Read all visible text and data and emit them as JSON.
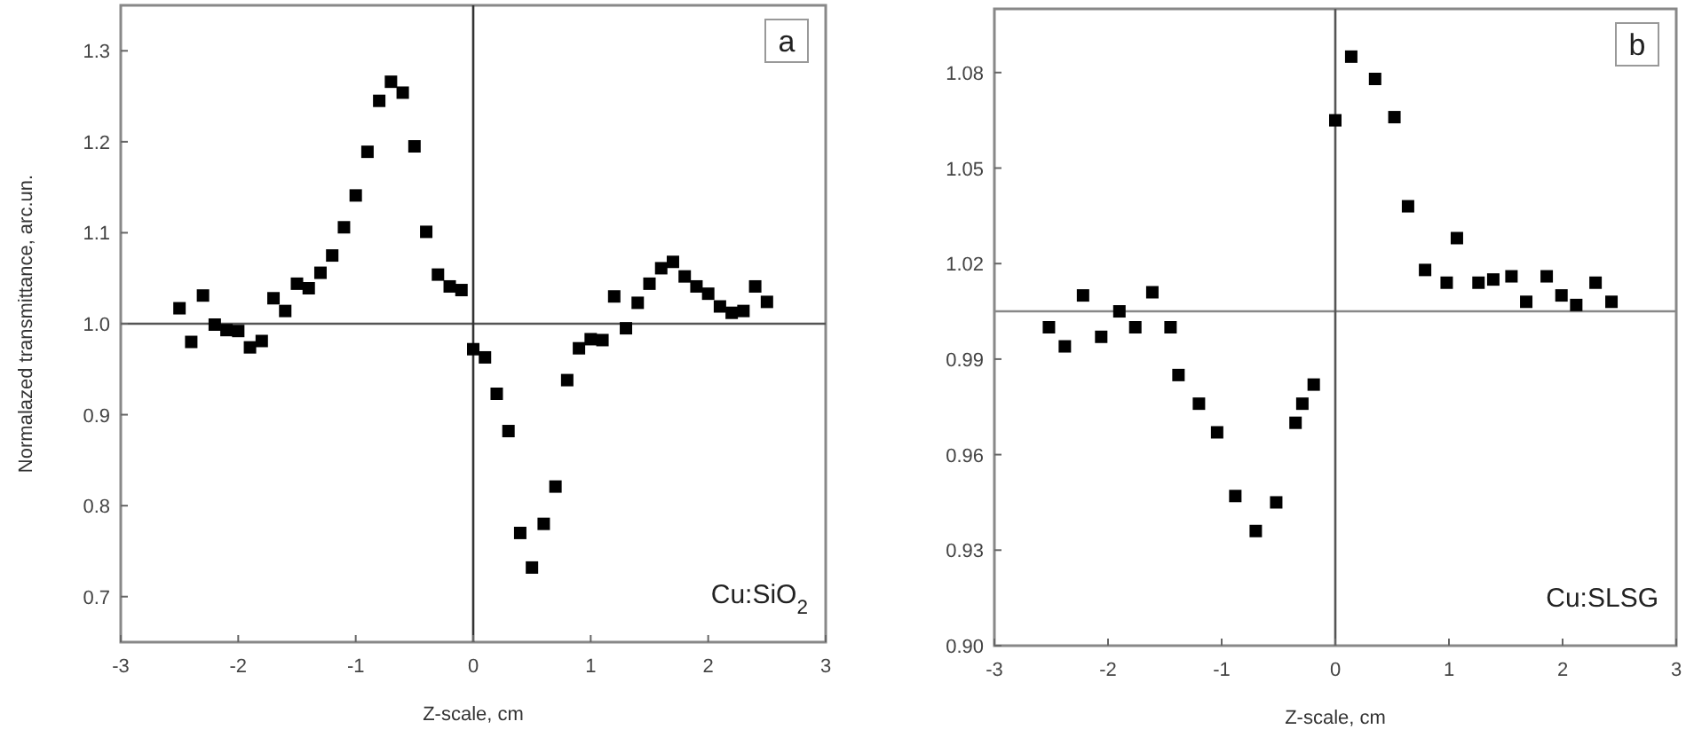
{
  "chart_data": [
    {
      "type": "scatter",
      "xlabel": "Z-scale, cm",
      "ylabel": "Normalazed transmittance, arc.un.",
      "annotations": [
        "a",
        "Cu:SiO$_{2}$"
      ],
      "x": [
        -2.5,
        -2.4,
        -2.3,
        -2.2,
        -2.1,
        -2.0,
        -1.9,
        -1.8,
        -1.7,
        -1.6,
        -1.5,
        -1.4,
        -1.3,
        -1.2,
        -1.1,
        -1.0,
        -0.9,
        -0.8,
        -0.7,
        -0.6,
        -0.5,
        -0.4,
        -0.3,
        -0.2,
        -0.1,
        0.0,
        0.1,
        0.2,
        0.3,
        0.4,
        0.5,
        0.6,
        0.7,
        0.8,
        0.9,
        1.0,
        1.1,
        1.2,
        1.3,
        1.4,
        1.5,
        1.6,
        1.7,
        1.8,
        1.9,
        2.0,
        2.1,
        2.2,
        2.3,
        2.4,
        2.5
      ],
      "series": [
        {
          "color": "#000000",
          "values": [
            1.017,
            0.98,
            1.031,
            0.999,
            0.993,
            0.992,
            0.974,
            0.981,
            1.028,
            1.014,
            1.044,
            1.039,
            1.056,
            1.075,
            1.106,
            1.141,
            1.189,
            1.245,
            1.266,
            1.254,
            1.195,
            1.101,
            1.054,
            1.041,
            1.037,
            0.972,
            0.963,
            0.923,
            0.882,
            0.77,
            0.732,
            0.78,
            0.821,
            0.938,
            0.973,
            0.983,
            0.982,
            1.03,
            0.995,
            1.023,
            1.044,
            1.061,
            1.068,
            1.052,
            1.041,
            1.033,
            1.019,
            1.012,
            1.014,
            1.041,
            1.024
          ]
        }
      ],
      "marker": "square",
      "xlim": [
        -3,
        3
      ],
      "xticks": [
        -3,
        -2,
        -1,
        0,
        1,
        2,
        3
      ],
      "ylim": [
        0.65,
        1.35
      ],
      "yticks": [
        {
          "value": 0.7,
          "label": "0.7"
        },
        {
          "value": 0.8,
          "label": "0.8"
        },
        {
          "value": 0.9,
          "label": "0.9"
        },
        {
          "value": 1,
          "label": "1.0"
        },
        {
          "value": 1.1,
          "label": "1.1"
        },
        {
          "value": 1.2,
          "label": "1.2"
        },
        {
          "value": 1.3,
          "label": "1.3"
        }
      ],
      "ref_lines": [
        {
          "axis": "y",
          "value": 1,
          "color": "#555555"
        },
        {
          "axis": "x",
          "value": 0,
          "color": "#333333"
        }
      ]
    },
    {
      "type": "scatter",
      "xlabel": "Z-scale, cm",
      "annotations": [
        "b",
        "Cu:SLSG"
      ],
      "x": [
        -2.52,
        -2.38,
        -2.22,
        -2.06,
        -1.9,
        -1.76,
        -1.61,
        -1.45,
        -1.38,
        -1.2,
        -1.04,
        -0.88,
        -0.7,
        -0.52,
        -0.35,
        -0.29,
        -0.19,
        0.0,
        0.14,
        0.35,
        0.52,
        0.64,
        0.79,
        0.98,
        1.07,
        1.26,
        1.39,
        1.55,
        1.68,
        1.86,
        1.99,
        2.12,
        2.29,
        2.43
      ],
      "series": [
        {
          "color": "#000000",
          "values": [
            1.0,
            0.994,
            1.01,
            0.997,
            1.005,
            1.0,
            1.011,
            1.0,
            0.985,
            0.976,
            0.967,
            0.947,
            0.936,
            0.945,
            0.97,
            0.976,
            0.982,
            1.065,
            1.085,
            1.078,
            1.066,
            1.038,
            1.018,
            1.014,
            1.028,
            1.014,
            1.015,
            1.016,
            1.008,
            1.016,
            1.01,
            1.007,
            1.014,
            1.008
          ]
        }
      ],
      "marker": "square",
      "xlim": [
        -3,
        3
      ],
      "xticks": [
        -3,
        -2,
        -1,
        0,
        1,
        2,
        3
      ],
      "ylim": [
        0.9,
        1.1
      ],
      "yticks": [
        {
          "value": 0.9,
          "label": "0.90"
        },
        {
          "value": 0.93,
          "label": "0.93"
        },
        {
          "value": 0.96,
          "label": "0.96"
        },
        {
          "value": 0.99,
          "label": "0.99"
        },
        {
          "value": 1.02,
          "label": "1.02"
        },
        {
          "value": 1.05,
          "label": "1.05"
        },
        {
          "value": 1.08,
          "label": "1.08"
        }
      ],
      "ref_lines": [
        {
          "axis": "y",
          "value": 1.005,
          "color": "#888888"
        },
        {
          "axis": "x",
          "value": 0,
          "color": "#555555"
        }
      ]
    }
  ]
}
